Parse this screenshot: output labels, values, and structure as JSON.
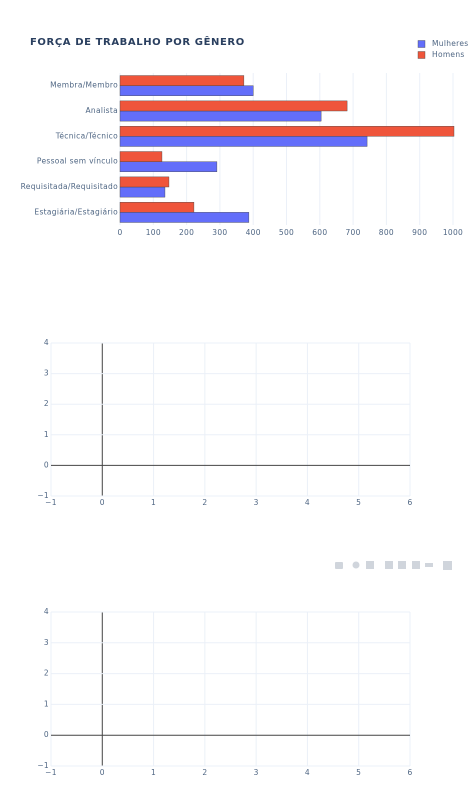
{
  "chart_data": [
    {
      "type": "bar",
      "orientation": "h",
      "title": "FORÇA DE TRABALHO POR GÊNERO",
      "categories": [
        "Membra/Membro",
        "Analista",
        "Técnica/Técnico",
        "Pessoal sem vínculo",
        "Requisitada/Requisitado",
        "Estagiária/Estagiário"
      ],
      "series": [
        {
          "name": "Mulheres",
          "color": "#636efa",
          "values": [
            400,
            604,
            742,
            291,
            135,
            387
          ]
        },
        {
          "name": "Homens",
          "color": "#ef553b",
          "values": [
            372,
            682,
            1003,
            126,
            147,
            222
          ]
        }
      ],
      "xlim": [
        0,
        1003
      ],
      "xticks": [
        0,
        100,
        200,
        300,
        400,
        500,
        600,
        700,
        800,
        900,
        1000
      ],
      "grid": true,
      "legend": "top-right"
    },
    {
      "type": "scatter",
      "xlim": [
        -1,
        6
      ],
      "ylim": [
        -1,
        4
      ],
      "xticks": [
        {
          "value": -1,
          "label": "−1"
        },
        0,
        1,
        2,
        3,
        4,
        5,
        6
      ],
      "yticks": [
        {
          "value": -1,
          "label": "−1"
        },
        0,
        1,
        2,
        3,
        4
      ],
      "grid": true
    },
    {
      "type": "scatter",
      "xlim": [
        -1,
        6
      ],
      "ylim": [
        -1,
        4
      ],
      "xticks": [
        {
          "value": -1,
          "label": "−1"
        },
        0,
        1,
        2,
        3,
        4,
        5,
        6
      ],
      "yticks": [
        {
          "value": -1,
          "label": "−1"
        },
        0,
        1,
        2,
        3,
        4
      ],
      "grid": true
    }
  ]
}
